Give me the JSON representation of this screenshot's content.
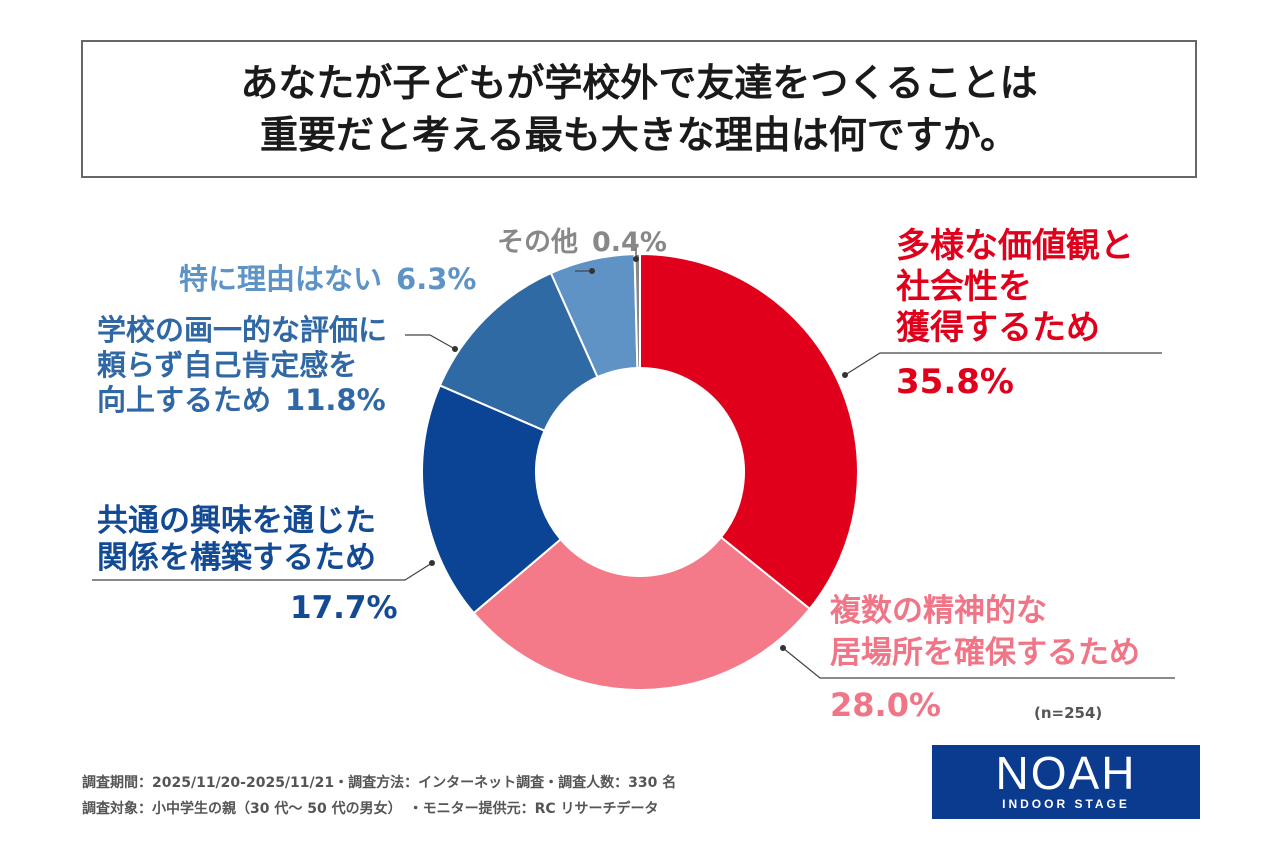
{
  "title": {
    "line1": "あなたが子どもが学校外で友達をつくることは",
    "line2": "重要だと考える最も大きな理由は何ですか。"
  },
  "chart_data": {
    "type": "pie",
    "donut": true,
    "start_angle_deg": 0,
    "direction": "clockwise",
    "slices": [
      {
        "label_lines": [
          "多様な価値観と",
          "社会性を",
          "獲得するため"
        ],
        "value": 35.8,
        "value_text": "35.8%",
        "color": "#e0001b"
      },
      {
        "label_lines": [
          "複数の精神的な",
          "居場所を確保するため"
        ],
        "value": 28.0,
        "value_text": "28.0%",
        "color": "#f47a89"
      },
      {
        "label_lines": [
          "共通の興味を通じた",
          "関係を構築するため"
        ],
        "value": 17.7,
        "value_text": "17.7%",
        "color": "#0b4495"
      },
      {
        "label_lines": [
          "学校の画一的な評価に",
          "頼らず自己肯定感を",
          "向上するため"
        ],
        "value": 11.8,
        "value_text": "11.8%",
        "color": "#306aa5"
      },
      {
        "label_lines": [
          "特に理由はない"
        ],
        "value": 6.3,
        "value_text": "6.3%",
        "color": "#5f93c6"
      },
      {
        "label_lines": [
          "その他"
        ],
        "value": 0.4,
        "value_text": "0.4%",
        "color": "#888888"
      }
    ],
    "sample_size": "(n=254)"
  },
  "footnotes": {
    "line1": "調査期間：2025/11/20-2025/11/21・調査方法：インターネット調査・調査人数：330 名",
    "line2": "調査対象：小中学生の親（30 代～ 50 代の男女）　・モニター提供元：RC リサーチデータ"
  },
  "logo": {
    "main": "NOAH",
    "sub": "INDOOR STAGE"
  }
}
